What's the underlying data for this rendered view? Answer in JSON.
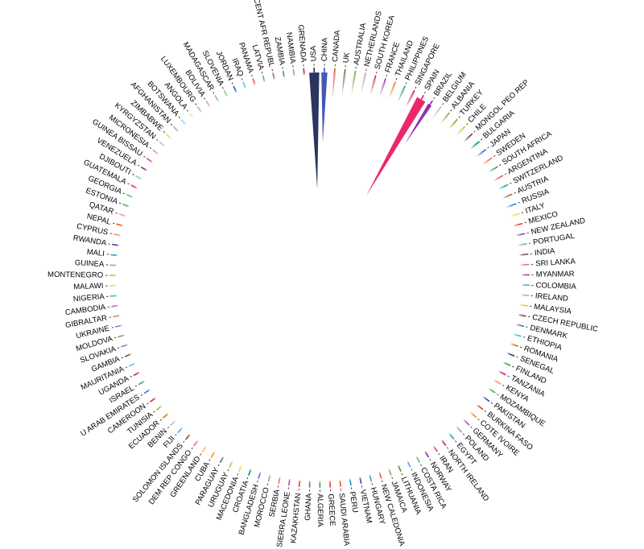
{
  "chart_data": {
    "type": "radial-bar",
    "title": "",
    "labels": [
      "USA",
      "CHINA",
      "CANADA",
      "UK",
      "AUSTRALIA",
      "NETHERLANDS",
      "SOUTH KOREA",
      "FRANCE",
      "THAILAND",
      "PHILIPPINES",
      "SINGAPORE",
      "SPAIN",
      "BRAZIL",
      "BELGIUM",
      "ALBANIA",
      "TURKEY",
      "CHILE",
      "MONGOL PEO REP",
      "BULGARIA",
      "JAPAN",
      "SWEDEN",
      "SOUTH AFRICA",
      "ARGENTINA",
      "SWITZERLAND",
      "AUSTRIA",
      "RUSSIA",
      "ITALY",
      "MEXICO",
      "NEW ZEALAND",
      "PORTUGAL",
      "INDIA",
      "SRI LANKA",
      "MYANMAR",
      "COLOMBIA",
      "IRELAND",
      "MALAYSIA",
      "CZECH REPUBLIC",
      "DENMARK",
      "ETHIOPIA",
      "ROMANIA",
      "SENEGAL",
      "FINLAND",
      "TANZANIA",
      "KENYA",
      "MOZAMBIQUE",
      "PAKISTAN",
      "BURKINA FASO",
      "COTE IVOIRE",
      "GERMANY",
      "POLAND",
      "EGYPT",
      "NORTH IRELAND",
      "IRAN",
      "NORWAY",
      "COSTA RICA",
      "INDONESIA",
      "LITHUANIA",
      "JAMAICA",
      "NEW CALEDONIA",
      "HUNGARY",
      "VIETNAM",
      "PERU",
      "SAUDI ARABIA",
      "GREECE",
      "ALGERIA",
      "GHANA",
      "KAZAKHSTAN",
      "SIERRA LEONE",
      "SERBIA",
      "MOROCCO",
      "BANGLADESH",
      "CROATIA",
      "MACEDONIA",
      "URUGUAY",
      "PARAGUAY",
      "CUBA",
      "GREENLAND",
      "DEM REP CONGO",
      "SOLOMON ISLANDS",
      "FIJI",
      "BENIN",
      "ECUADOR",
      "TUNISIA",
      "CAMEROON",
      "U ARAB EMIRATES",
      "ISRAEL",
      "UGANDA",
      "MAURITANIA",
      "GAMBIA",
      "SLOVAKIA",
      "MOLDOVA",
      "UKRAINE",
      "GIBRALTAR",
      "CAMBODIA",
      "NIGERIA",
      "MALAWI",
      "MONTENEGRO",
      "GUINEA",
      "MALI",
      "RWANDA",
      "CYPRUS",
      "NEPAL",
      "QATAR",
      "ESTONIA",
      "GEORGIA",
      "GUATEMALA",
      "DJIBOUTI",
      "VENEZUELA",
      "GUINEA BISSAU",
      "MICRONESIA",
      "KYRGYZSTAN",
      "ZIMBABWE",
      "AFGHANISTAN",
      "BOTSWANA",
      "ANGOLA",
      "LUXEMBOURG",
      "BOLIVIA",
      "MADAGASCAR",
      "SLOVENIA",
      "JORDAN",
      "IRAQ",
      "PANAMA",
      "LATVIA",
      "CENT AFR REPUBL",
      "ZAMBIA",
      "NAMIBIA",
      "GRENADA"
    ],
    "values": [
      100,
      60,
      22,
      18,
      16,
      14,
      13,
      12,
      11,
      11,
      12,
      95,
      40,
      10,
      8,
      7,
      7,
      6,
      6,
      6,
      6,
      5,
      5,
      5,
      5,
      5,
      4,
      4,
      4,
      4,
      4,
      4,
      3,
      3,
      3,
      3,
      3,
      3,
      3,
      3,
      3,
      3,
      3,
      3,
      3,
      3,
      3,
      3,
      3,
      3,
      3,
      2,
      2,
      2,
      2,
      2,
      2,
      2,
      2,
      2,
      2,
      2,
      2,
      2,
      2,
      2,
      2,
      2,
      2,
      2,
      2,
      2,
      2,
      2,
      2,
      2,
      2,
      2,
      2,
      2,
      2,
      2,
      2,
      2,
      2,
      2,
      2,
      2,
      2,
      2,
      2,
      2,
      2,
      2,
      2,
      2,
      2,
      2,
      2,
      2,
      2,
      2,
      2,
      2,
      2,
      2,
      2,
      2,
      2,
      2,
      2,
      2,
      2,
      2,
      2,
      2,
      2,
      2,
      2,
      2,
      2,
      2,
      2,
      2,
      2,
      2,
      2
    ],
    "colors": [
      "#1f2a5a",
      "#3a4fb0",
      "#d9543c",
      "#7d5a3c",
      "#6aa84f",
      "#a7a7a7",
      "#c0392b",
      "#8e44ad",
      "#e67e22",
      "#16a085",
      "#c2185b",
      "#e91e63",
      "#8e24aa",
      "#bdbdbd",
      "#7cb342",
      "#9e9d24",
      "#c0ca33",
      "#5d4037",
      "#00897b",
      "#1976d2",
      "#ff7043",
      "#43a047",
      "#ef5350",
      "#26a69a",
      "#8d6e63",
      "#1e88e5",
      "#fdd835",
      "#e53935",
      "#7e57c2",
      "#90a4ae",
      "#6d4c41",
      "#f06292",
      "#ab47bc",
      "#4db6ac",
      "#9ccc65",
      "#ffb74d",
      "#795548",
      "#5c6bc0",
      "#26c6da",
      "#ef6c00",
      "#283593",
      "#43a047",
      "#d81b60",
      "#ff8a65",
      "#4caf50",
      "#3949ab",
      "#e53935",
      "#fb8c00",
      "#ab47bc",
      "#9e9e9e",
      "#00acc1",
      "#c62828",
      "#ec407a",
      "#8e24aa",
      "#66bb6a",
      "#42a5f5",
      "#558b2f",
      "#7cb342",
      "#ef5350",
      "#26a69a",
      "#5e35b1",
      "#1e88e5",
      "#f4511e",
      "#e53935",
      "#43a047",
      "#8d6e63",
      "#e53935",
      "#ab47bc",
      "#ff7043",
      "#9e9e9e",
      "#7e57c2",
      "#00897b",
      "#fdd835",
      "#c0ca33",
      "#546e7a",
      "#fb8c00",
      "#ffb74d",
      "#f06292",
      "#6d4c41",
      "#42a5f5",
      "#bdbdbd",
      "#ef6c00",
      "#8bc34a",
      "#e91e63",
      "#5c6bc0",
      "#43a047",
      "#d81b60",
      "#4fc3f7",
      "#795548",
      "#9575cd",
      "#a1887f",
      "#7986cb",
      "#e57373",
      "#ba68c8",
      "#4db6ac",
      "#ffd54f",
      "#9ccc65",
      "#90a4ae",
      "#26a69a",
      "#3949ab",
      "#ff8a65",
      "#f4511e",
      "#ef9a9a",
      "#4caf50",
      "#66bb6a",
      "#e53935",
      "#80cbc4",
      "#8e24aa",
      "#ec407a",
      "#b39ddb",
      "#a5d6a7",
      "#ffcc80",
      "#ce93d8",
      "#80deea",
      "#e6ee9c",
      "#bcaaa4",
      "#f48fb1",
      "#9fa8da",
      "#81c784",
      "#1565c0",
      "#64b5f6",
      "#ef5350",
      "#4db6ac",
      "#8d6e63",
      "#43a047",
      "#9e9e9e",
      "#c2185b"
    ],
    "start_angle_deg": -1.5,
    "direction": "clockwise",
    "grid": false,
    "legend": "none"
  }
}
